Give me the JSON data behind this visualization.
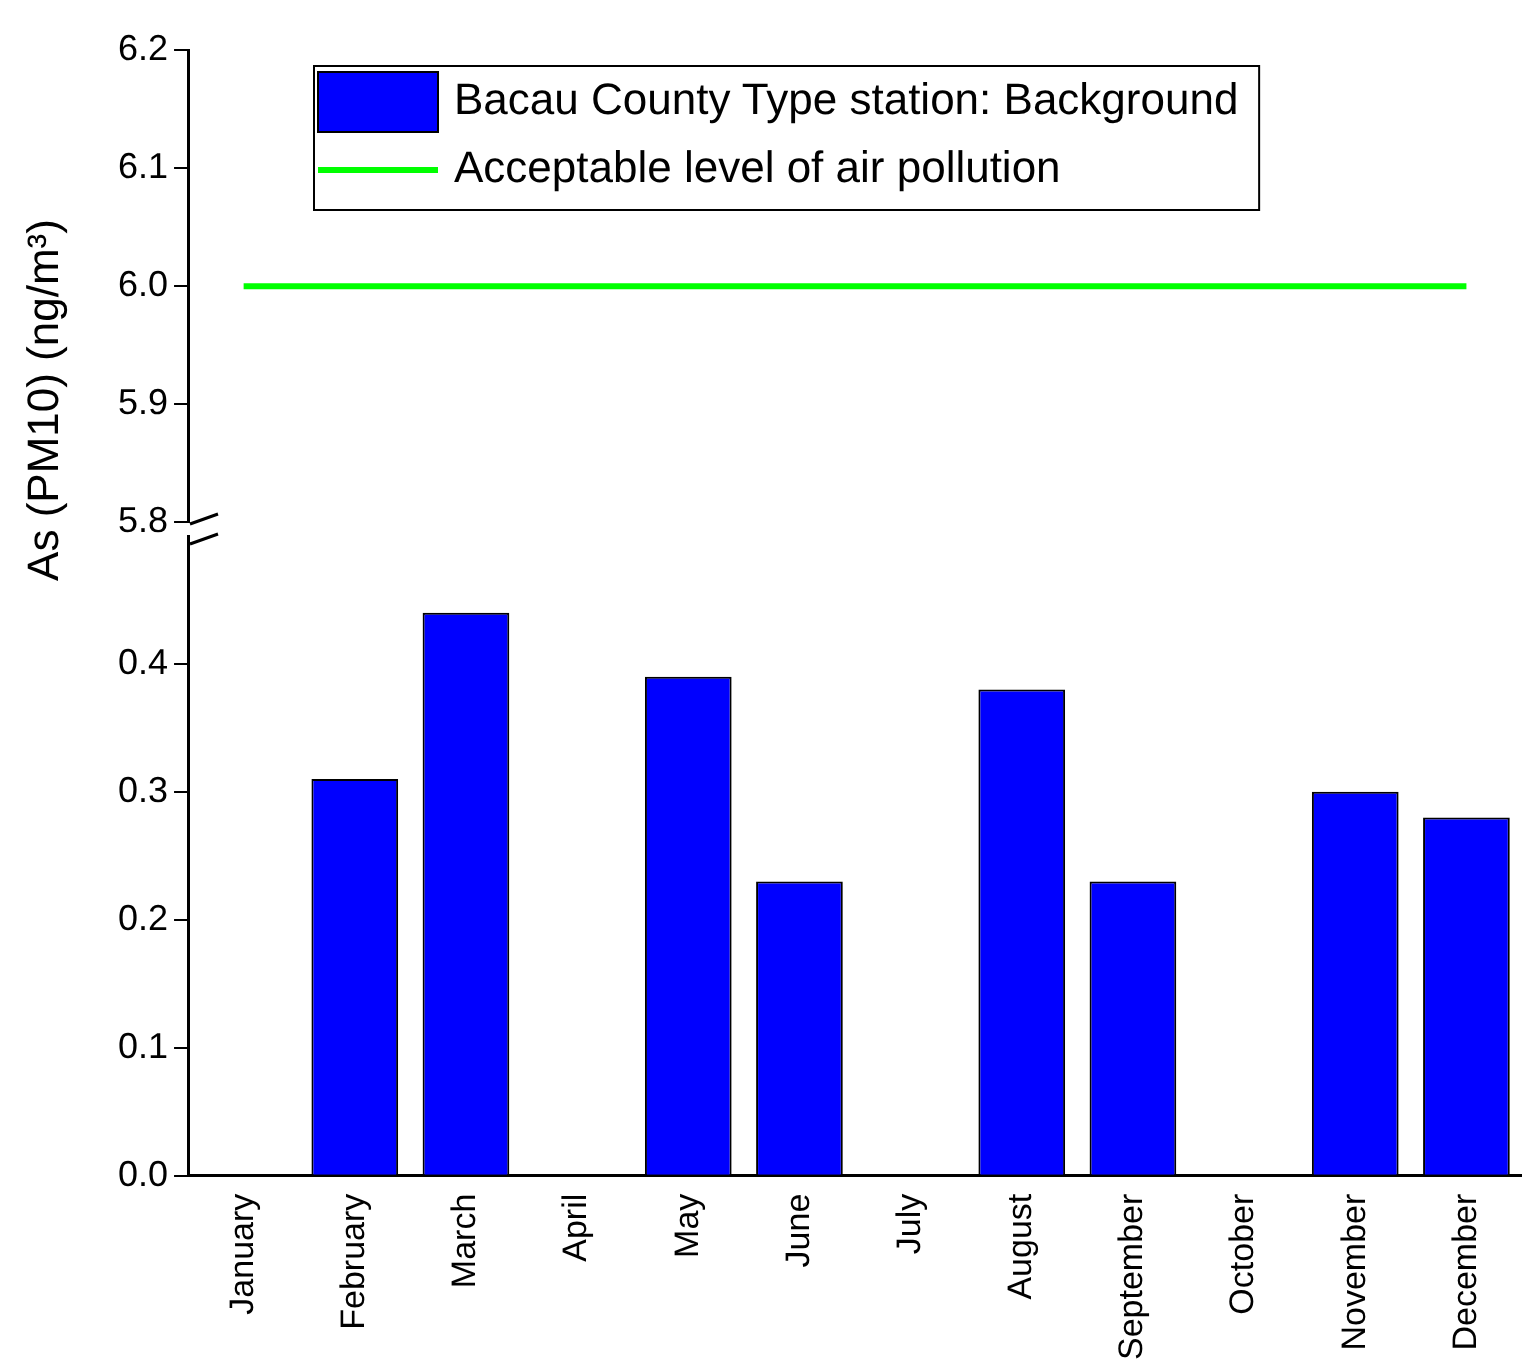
{
  "chart_data": [
    {
      "type": "line",
      "categories": [
        null,
        null,
        null,
        null,
        null,
        null,
        null,
        null,
        null,
        null,
        null,
        null
      ],
      "ylim": [
        5.8,
        6.2
      ],
      "yticks": [
        5.8,
        5.9,
        {
          "value": 6.0,
          "label": "6.0"
        },
        6.1,
        6.2
      ],
      "tick_labels": "y",
      "legend": "top",
      "series": [
        {
          "name": "Acceptable level of air pollution",
          "color": "#00ff00",
          "values": [
            6.0,
            6.0,
            6.0,
            6.0,
            6.0,
            6.0,
            6.0,
            6.0,
            6.0,
            6.0,
            6.0,
            6.0
          ]
        }
      ]
    },
    {
      "type": "bar",
      "categories": [
        "January",
        "February",
        "March",
        "April",
        "May",
        "June",
        "July",
        "August",
        "September",
        "October",
        "November",
        "December"
      ],
      "ylabel": "As (PM10) (ng/m³)",
      "ylim": [
        0,
        0.5
      ],
      "yticks": [
        {
          "value": 0.0,
          "label": "0.0"
        },
        0.1,
        0.2,
        0.3,
        0.4
      ],
      "legend": "top",
      "series": [
        {
          "name": "Bacau County Type station: Background",
          "color": "#0000ff",
          "values": [
            null,
            0.31,
            0.44,
            null,
            0.39,
            0.23,
            null,
            0.38,
            0.23,
            null,
            0.3,
            0.28
          ]
        }
      ]
    }
  ]
}
